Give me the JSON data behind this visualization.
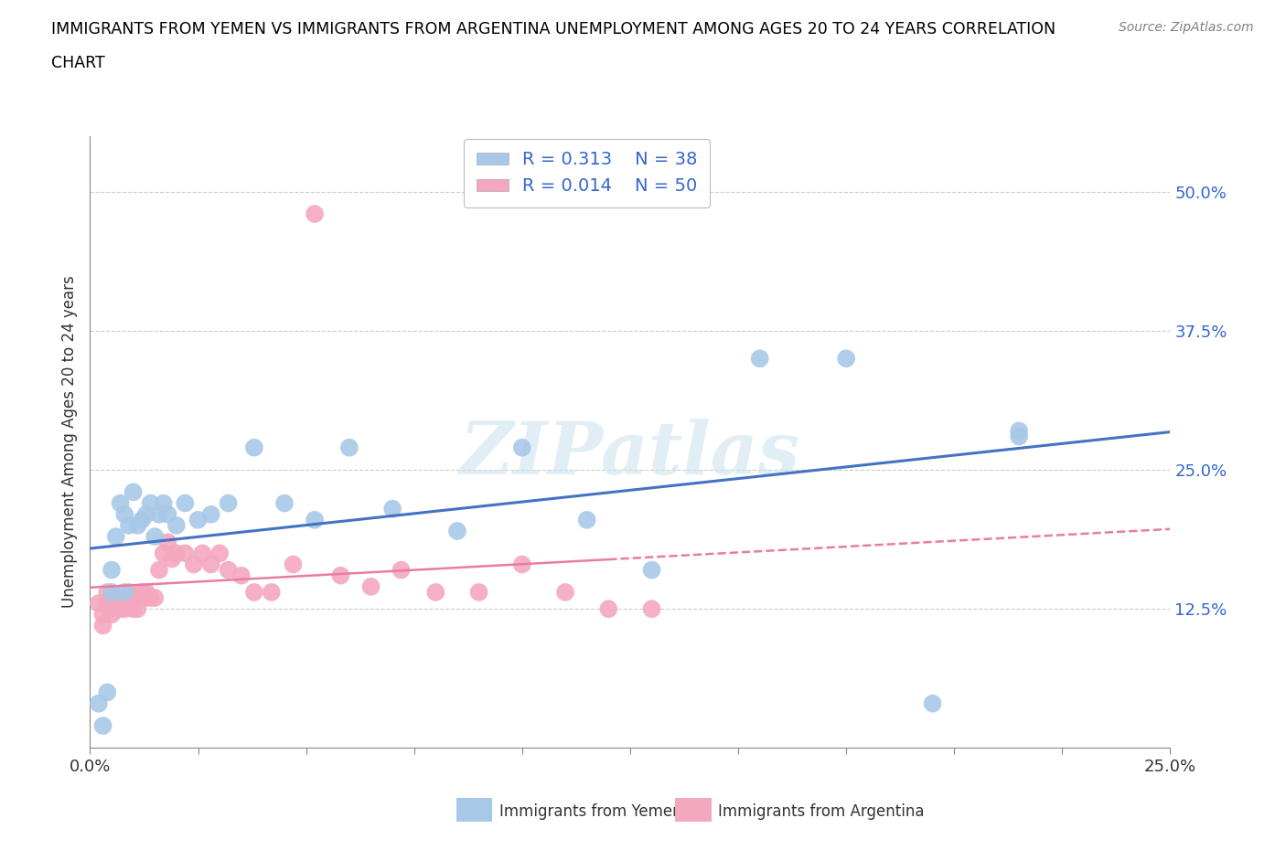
{
  "title_line1": "IMMIGRANTS FROM YEMEN VS IMMIGRANTS FROM ARGENTINA UNEMPLOYMENT AMONG AGES 20 TO 24 YEARS CORRELATION",
  "title_line2": "CHART",
  "source": "Source: ZipAtlas.com",
  "ylabel": "Unemployment Among Ages 20 to 24 years",
  "xlim": [
    0.0,
    0.25
  ],
  "ylim": [
    0.0,
    0.55
  ],
  "xticks": [
    0.0,
    0.025,
    0.05,
    0.075,
    0.1,
    0.125,
    0.15,
    0.175,
    0.2,
    0.225,
    0.25
  ],
  "xtick_labels": [
    "0.0%",
    "",
    "",
    "",
    "",
    "",
    "",
    "",
    "",
    "",
    "25.0%"
  ],
  "ytick_right": [
    0.125,
    0.25,
    0.375,
    0.5
  ],
  "ytick_right_labels": [
    "12.5%",
    "25.0%",
    "37.5%",
    "50.0%"
  ],
  "yemen_R": "0.313",
  "yemen_N": "38",
  "argentina_R": "0.014",
  "argentina_N": "50",
  "yemen_color": "#A8C8E8",
  "argentina_color": "#F4A8C0",
  "yemen_line_color": "#4472C4",
  "argentina_line_color": "#E87DA0",
  "legend_text_color": "#3366CC",
  "watermark": "ZIPatlas",
  "yemen_x": [
    0.002,
    0.003,
    0.004,
    0.005,
    0.005,
    0.006,
    0.007,
    0.008,
    0.008,
    0.009,
    0.01,
    0.011,
    0.012,
    0.013,
    0.014,
    0.015,
    0.016,
    0.017,
    0.018,
    0.02,
    0.022,
    0.025,
    0.028,
    0.032,
    0.038,
    0.045,
    0.052,
    0.06,
    0.07,
    0.085,
    0.1,
    0.115,
    0.13,
    0.155,
    0.175,
    0.195,
    0.215,
    0.215
  ],
  "yemen_y": [
    0.04,
    0.02,
    0.05,
    0.14,
    0.16,
    0.19,
    0.22,
    0.14,
    0.21,
    0.2,
    0.23,
    0.2,
    0.205,
    0.21,
    0.22,
    0.19,
    0.21,
    0.22,
    0.21,
    0.2,
    0.22,
    0.205,
    0.21,
    0.22,
    0.27,
    0.22,
    0.205,
    0.27,
    0.215,
    0.195,
    0.27,
    0.205,
    0.16,
    0.35,
    0.35,
    0.04,
    0.285,
    0.28
  ],
  "argentina_x": [
    0.002,
    0.003,
    0.003,
    0.004,
    0.004,
    0.005,
    0.005,
    0.005,
    0.006,
    0.006,
    0.007,
    0.007,
    0.008,
    0.008,
    0.009,
    0.009,
    0.01,
    0.01,
    0.011,
    0.011,
    0.012,
    0.013,
    0.013,
    0.014,
    0.015,
    0.016,
    0.017,
    0.018,
    0.019,
    0.02,
    0.022,
    0.024,
    0.026,
    0.028,
    0.03,
    0.032,
    0.035,
    0.038,
    0.042,
    0.047,
    0.052,
    0.058,
    0.065,
    0.072,
    0.08,
    0.09,
    0.1,
    0.11,
    0.12,
    0.13
  ],
  "argentina_y": [
    0.13,
    0.12,
    0.11,
    0.14,
    0.13,
    0.135,
    0.125,
    0.12,
    0.135,
    0.13,
    0.135,
    0.125,
    0.13,
    0.125,
    0.14,
    0.135,
    0.135,
    0.125,
    0.135,
    0.125,
    0.14,
    0.135,
    0.14,
    0.135,
    0.135,
    0.16,
    0.175,
    0.185,
    0.17,
    0.175,
    0.175,
    0.165,
    0.175,
    0.165,
    0.175,
    0.16,
    0.155,
    0.14,
    0.14,
    0.165,
    0.48,
    0.155,
    0.145,
    0.16,
    0.14,
    0.14,
    0.165,
    0.14,
    0.125,
    0.125
  ]
}
